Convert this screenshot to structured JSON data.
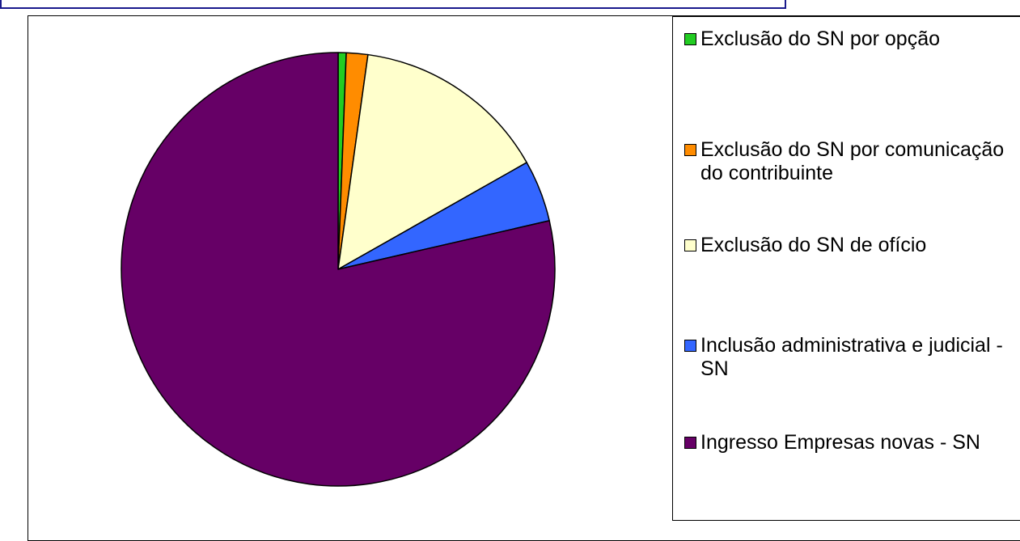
{
  "chart_data": {
    "type": "pie",
    "categories": [
      "Exclusão do SN por opção",
      "Exclusão do SN por comunicação do contribuinte",
      "Exclusão do SN de ofício",
      "Inclusão administrativa e judicial - SN",
      "Ingresso Empresas novas - SN"
    ],
    "values": [
      0.6,
      1.6,
      14.6,
      4.6,
      78.6
    ],
    "colors": [
      "#22cc22",
      "#ff8c00",
      "#ffffcc",
      "#3366ff",
      "#660066"
    ],
    "start_angle_deg": 0,
    "direction": "clockwise",
    "legend_position": "right"
  },
  "legend": {
    "items": [
      {
        "label": "Exclusão do SN por opção",
        "color": "#22cc22"
      },
      {
        "label": "Exclusão do SN por comunicação do contribuinte",
        "color": "#ff8c00"
      },
      {
        "label": "Exclusão do SN de ofício",
        "color": "#ffffcc"
      },
      {
        "label": "Inclusão administrativa e judicial - SN",
        "color": "#3366ff"
      },
      {
        "label": "Ingresso Empresas novas - SN",
        "color": "#660066"
      }
    ]
  }
}
